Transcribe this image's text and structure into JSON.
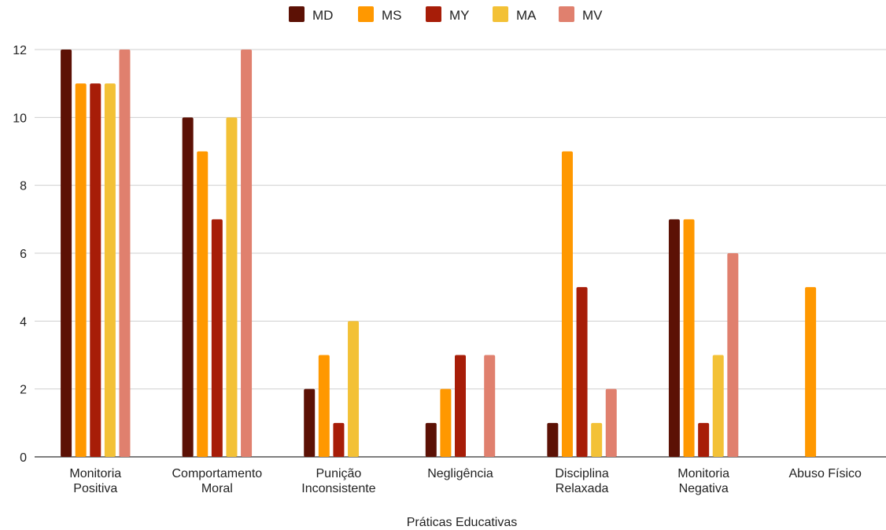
{
  "chart_data": {
    "type": "bar",
    "title": "",
    "xlabel": "Práticas Educativas",
    "ylabel": "",
    "ylim": [
      0,
      12
    ],
    "yticks": [
      0,
      2,
      4,
      6,
      8,
      10,
      12
    ],
    "grid": true,
    "legend_position": "top-center",
    "categories": [
      [
        "Monitoria",
        "Positiva"
      ],
      [
        "Comportamento",
        "Moral"
      ],
      [
        "Punição",
        "Inconsistente"
      ],
      [
        "Negligência"
      ],
      [
        "Disciplina",
        "Relaxada"
      ],
      [
        "Monitoria",
        "Negativa"
      ],
      [
        "Abuso Físico"
      ]
    ],
    "series": [
      {
        "name": "MD",
        "color": "#5c1105",
        "values": [
          12,
          10,
          2,
          1,
          1,
          7,
          0
        ]
      },
      {
        "name": "MS",
        "color": "#ff9800",
        "values": [
          11,
          9,
          3,
          2,
          9,
          7,
          5
        ]
      },
      {
        "name": "MY",
        "color": "#a71d08",
        "values": [
          11,
          7,
          1,
          3,
          5,
          1,
          0
        ]
      },
      {
        "name": "MA",
        "color": "#f3c136",
        "values": [
          11,
          10,
          4,
          0,
          1,
          3,
          0
        ]
      },
      {
        "name": "MV",
        "color": "#e0806e",
        "values": [
          12,
          12,
          0,
          3,
          2,
          6,
          0
        ]
      }
    ]
  }
}
